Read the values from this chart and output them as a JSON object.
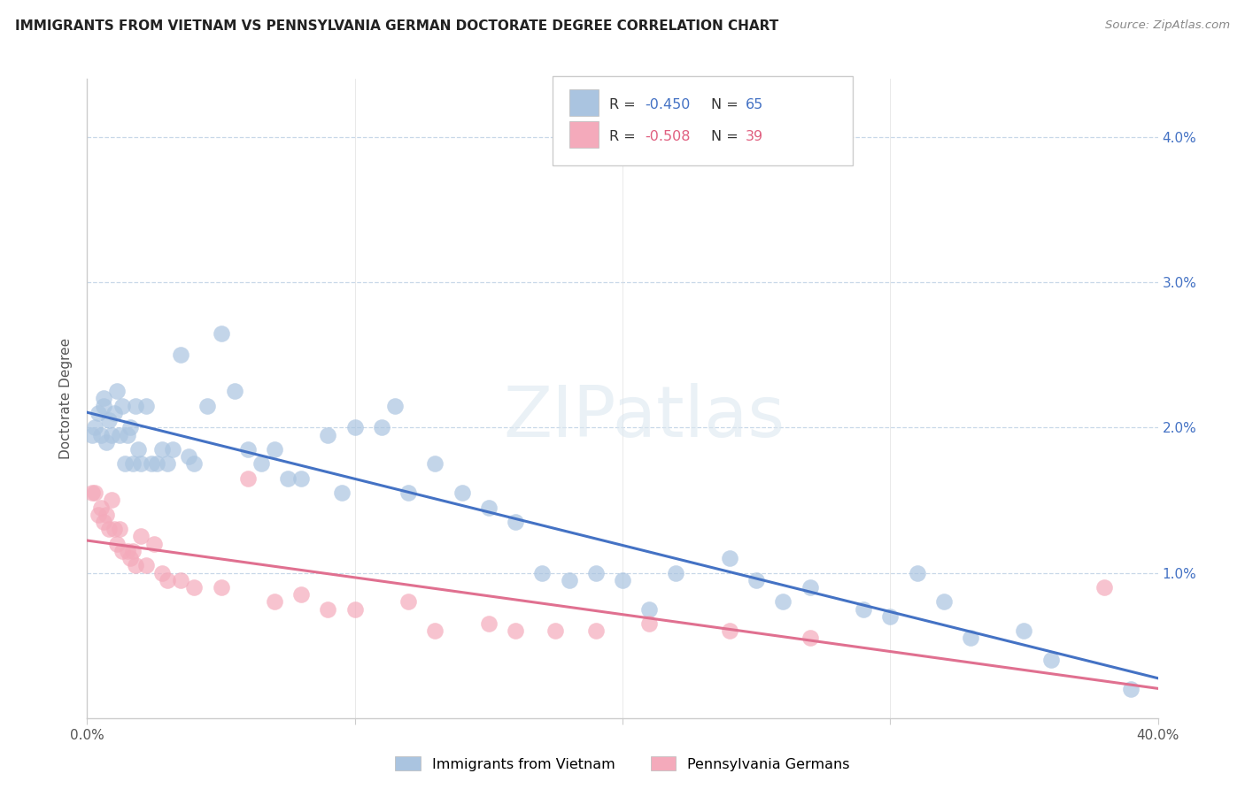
{
  "title": "IMMIGRANTS FROM VIETNAM VS PENNSYLVANIA GERMAN DOCTORATE DEGREE CORRELATION CHART",
  "source": "Source: ZipAtlas.com",
  "ylabel_label": "Doctorate Degree",
  "xlim": [
    0.0,
    0.4
  ],
  "ylim": [
    0.0,
    0.044
  ],
  "blue_line_intercept": 0.0185,
  "blue_line_slope": -0.04,
  "pink_line_intercept": 0.013,
  "pink_line_slope": -0.03,
  "blue_color": "#aac4e0",
  "pink_color": "#f4aabb",
  "blue_line_color": "#4472c4",
  "pink_line_color": "#e07090",
  "watermark": "ZIPatlas",
  "blue_scatter_x": [
    0.002,
    0.003,
    0.004,
    0.005,
    0.006,
    0.006,
    0.007,
    0.008,
    0.009,
    0.01,
    0.011,
    0.012,
    0.013,
    0.014,
    0.015,
    0.016,
    0.017,
    0.018,
    0.019,
    0.02,
    0.022,
    0.024,
    0.026,
    0.028,
    0.03,
    0.032,
    0.035,
    0.038,
    0.04,
    0.045,
    0.05,
    0.055,
    0.06,
    0.065,
    0.07,
    0.075,
    0.08,
    0.09,
    0.095,
    0.1,
    0.11,
    0.115,
    0.12,
    0.13,
    0.14,
    0.15,
    0.16,
    0.17,
    0.18,
    0.19,
    0.2,
    0.21,
    0.22,
    0.24,
    0.25,
    0.26,
    0.27,
    0.29,
    0.3,
    0.31,
    0.32,
    0.33,
    0.35,
    0.36,
    0.39
  ],
  "blue_scatter_y": [
    0.0195,
    0.02,
    0.021,
    0.0195,
    0.0215,
    0.022,
    0.019,
    0.0205,
    0.0195,
    0.021,
    0.0225,
    0.0195,
    0.0215,
    0.0175,
    0.0195,
    0.02,
    0.0175,
    0.0215,
    0.0185,
    0.0175,
    0.0215,
    0.0175,
    0.0175,
    0.0185,
    0.0175,
    0.0185,
    0.025,
    0.018,
    0.0175,
    0.0215,
    0.0265,
    0.0225,
    0.0185,
    0.0175,
    0.0185,
    0.0165,
    0.0165,
    0.0195,
    0.0155,
    0.02,
    0.02,
    0.0215,
    0.0155,
    0.0175,
    0.0155,
    0.0145,
    0.0135,
    0.01,
    0.0095,
    0.01,
    0.0095,
    0.0075,
    0.01,
    0.011,
    0.0095,
    0.008,
    0.009,
    0.0075,
    0.007,
    0.01,
    0.008,
    0.0055,
    0.006,
    0.004,
    0.002
  ],
  "pink_scatter_x": [
    0.002,
    0.003,
    0.004,
    0.005,
    0.006,
    0.007,
    0.008,
    0.009,
    0.01,
    0.011,
    0.012,
    0.013,
    0.015,
    0.016,
    0.017,
    0.018,
    0.02,
    0.022,
    0.025,
    0.028,
    0.03,
    0.035,
    0.04,
    0.05,
    0.06,
    0.07,
    0.08,
    0.09,
    0.1,
    0.12,
    0.13,
    0.15,
    0.16,
    0.175,
    0.19,
    0.21,
    0.24,
    0.27,
    0.38
  ],
  "pink_scatter_y": [
    0.0155,
    0.0155,
    0.014,
    0.0145,
    0.0135,
    0.014,
    0.013,
    0.015,
    0.013,
    0.012,
    0.013,
    0.0115,
    0.0115,
    0.011,
    0.0115,
    0.0105,
    0.0125,
    0.0105,
    0.012,
    0.01,
    0.0095,
    0.0095,
    0.009,
    0.009,
    0.0165,
    0.008,
    0.0085,
    0.0075,
    0.0075,
    0.008,
    0.006,
    0.0065,
    0.006,
    0.006,
    0.006,
    0.0065,
    0.006,
    0.0055,
    0.009
  ]
}
